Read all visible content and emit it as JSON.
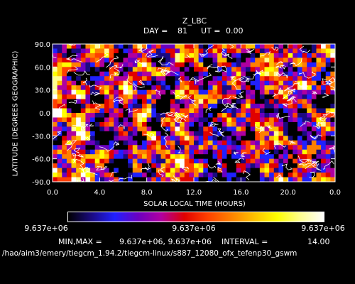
{
  "chart_data": {
    "type": "heatmap",
    "title": "Z_LBC",
    "subtitle_day_label": "DAY =",
    "subtitle_day_value": "81",
    "subtitle_ut_label": "UT =",
    "subtitle_ut_value": "0.00",
    "xlabel": "SOLAR LOCAL TIME (HOURS)",
    "ylabel": "LATITUDE (DEGREES GEOGRAPHIC)",
    "xlim": [
      0,
      24
    ],
    "ylim": [
      -90,
      90
    ],
    "x_ticks": [
      "0.0",
      "4.0",
      "8.0",
      "12.0",
      "16.0",
      "20.0",
      "0.0"
    ],
    "y_ticks": [
      "90.0",
      "60.0",
      "30.0",
      "0.0",
      "-30.0",
      "-60.0",
      "-90.0"
    ],
    "colorbar_labels": [
      "9.637e+06",
      "9.637e+06",
      "9.637e+06"
    ],
    "min_max_label": "MIN,MAX =",
    "min_max_value": "9.637e+06, 9.637e+06",
    "interval_label": "INTERVAL =",
    "interval_value": "14.00",
    "file_path": "/hao/aim3/emery/tiegcm_1.94.2/tiegcm-linux/s887_12080_ofx_tefenp30_gswm",
    "colormap": [
      "#000000",
      "#1a0a80",
      "#2020ff",
      "#6a00c0",
      "#b000a0",
      "#e00000",
      "#ff4000",
      "#ff8000",
      "#ffc000",
      "#ffff00",
      "#ffff90",
      "#ffffff"
    ]
  }
}
